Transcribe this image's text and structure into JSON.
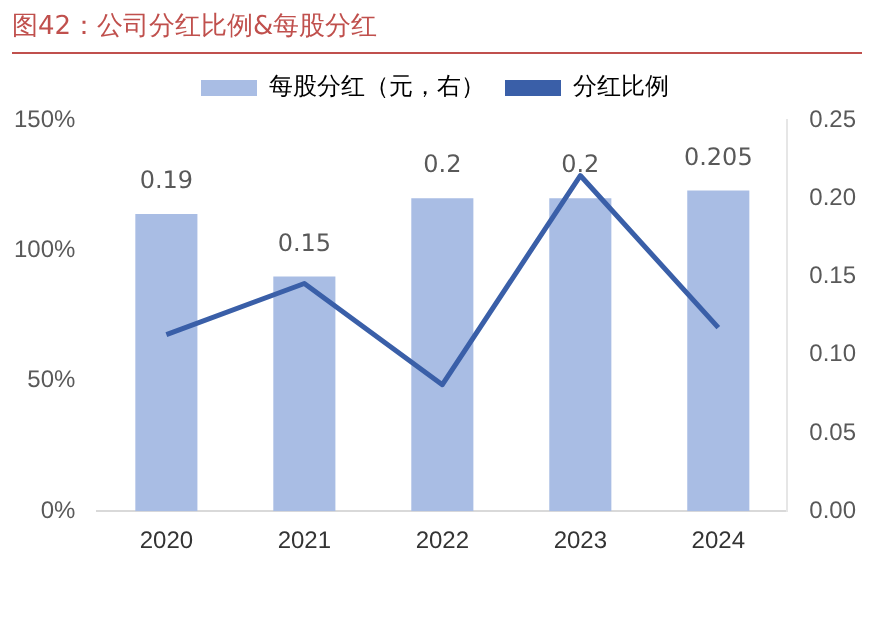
{
  "chart_data": {
    "type": "bar",
    "title": "图42：公司分红比例&每股分红",
    "categories": [
      "2020",
      "2021",
      "2022",
      "2023",
      "2024"
    ],
    "series": [
      {
        "name": "每股分红（元，右）",
        "axis": "y2",
        "color": "#a9bde4",
        "values": [
          0.19,
          0.15,
          0.2,
          0.2,
          0.205
        ],
        "value_labels": [
          "0.19",
          "0.15",
          "0.2",
          "0.2",
          "0.205"
        ]
      },
      {
        "name": "分红比例",
        "type": "line",
        "axis": "y",
        "color": "#3a5fa8",
        "values": [
          67.7,
          87.3,
          48.5,
          128.7,
          70.4
        ]
      }
    ],
    "ylim": [
      0,
      150
    ],
    "yticks": [
      {
        "value": 0,
        "label": "0%"
      },
      {
        "value": 50,
        "label": "50%"
      },
      {
        "value": 100,
        "label": "100%"
      },
      {
        "value": 150,
        "label": "150%"
      }
    ],
    "y2lim": [
      0,
      0.25
    ],
    "y2ticks": [
      {
        "value": 0,
        "label": "0.00"
      },
      {
        "value": 0.05,
        "label": "0.05"
      },
      {
        "value": 0.1,
        "label": "0.10"
      },
      {
        "value": 0.15,
        "label": "0.15"
      },
      {
        "value": 0.2,
        "label": "0.20"
      },
      {
        "value": 0.25,
        "label": "0.25"
      }
    ],
    "legend": "top",
    "grid": false,
    "marker": "none"
  }
}
